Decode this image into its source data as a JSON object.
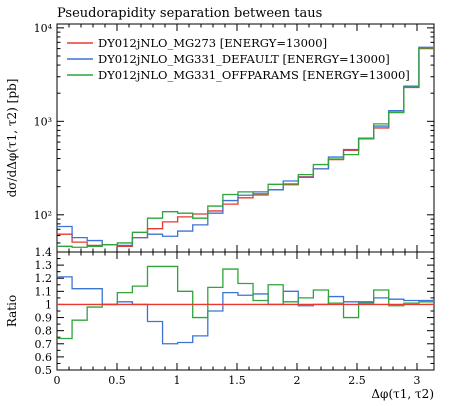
{
  "chart_data": [
    {
      "type": "line",
      "title": "Pseudorapidity separation between taus",
      "ylabel": "dσ/dΔφ(τ1, τ2) [pb]",
      "xlabel": "",
      "yscale": "log",
      "xlim": [
        0,
        3.1416
      ],
      "ylim": [
        40,
        11000
      ],
      "grid": false,
      "legend_position": "top-left",
      "x_ticks": [
        "0",
        "0.5",
        "1",
        "1.5",
        "2",
        "2.5",
        "3"
      ],
      "y_ticks": [
        "10²",
        "10³",
        "10⁴"
      ],
      "bin_edges": [
        0,
        0.1257,
        0.2513,
        0.377,
        0.5027,
        0.6283,
        0.754,
        0.8796,
        1.0053,
        1.131,
        1.2566,
        1.3823,
        1.508,
        1.6336,
        1.7593,
        1.885,
        2.0106,
        2.1363,
        2.262,
        2.3876,
        2.5133,
        2.639,
        2.7646,
        2.8903,
        3.016,
        3.1416
      ],
      "series": [
        {
          "name": "DY012jNLO_MG273 [ENERGY=13000]",
          "color": "#e8382f",
          "values": [
            62,
            51,
            47,
            48,
            46,
            57,
            71,
            84,
            95,
            102,
            110,
            130,
            152,
            163,
            185,
            210,
            255,
            310,
            390,
            490,
            650,
            850,
            1250,
            2300,
            6000
          ]
        },
        {
          "name": "DY012jNLO_MG331_DEFAULT [ENERGY=13000]",
          "color": "#3c74d6",
          "values": [
            75,
            57,
            53,
            48,
            47,
            57,
            62,
            59,
            67,
            78,
            104,
            142,
            162,
            176,
            185,
            230,
            252,
            310,
            415,
            500,
            660,
            890,
            1300,
            2380,
            6200
          ]
        },
        {
          "name": "DY012jNLO_MG331_OFFPARAMS [ENERGY=13000]",
          "color": "#2ea43a",
          "values": [
            46,
            45,
            46,
            48,
            50,
            65,
            92,
            108,
            104,
            92,
            124,
            165,
            176,
            168,
            212,
            214,
            269,
            345,
            395,
            440,
            655,
            940,
            1240,
            2320,
            6100
          ]
        }
      ]
    },
    {
      "type": "line",
      "title": "",
      "ylabel": "Ratio",
      "xlabel": "Δφ(τ1, τ2)",
      "xlim": [
        0,
        3.1416
      ],
      "ylim": [
        0.5,
        1.4
      ],
      "grid": false,
      "x_ticks": [
        "0",
        "0.5",
        "1",
        "1.5",
        "2",
        "2.5",
        "3"
      ],
      "y_ticks": [
        "0.5",
        "0.6",
        "0.7",
        "0.8",
        "0.9",
        "1",
        "1.1",
        "1.2",
        "1.3",
        "1.4"
      ],
      "bin_edges": [
        0,
        0.1257,
        0.2513,
        0.377,
        0.5027,
        0.6283,
        0.754,
        0.8796,
        1.0053,
        1.131,
        1.2566,
        1.3823,
        1.508,
        1.6336,
        1.7593,
        1.885,
        2.0106,
        2.1363,
        2.262,
        2.3876,
        2.5133,
        2.639,
        2.7646,
        2.8903,
        3.016,
        3.1416
      ],
      "series": [
        {
          "name": "DY012jNLO_MG273 [ENERGY=13000]",
          "color": "#e8382f",
          "values": [
            1,
            1,
            1,
            1,
            1,
            1,
            1,
            1,
            1,
            1,
            1,
            1,
            1,
            1,
            1,
            1,
            1,
            1,
            1,
            1,
            1,
            1,
            1,
            1,
            1
          ]
        },
        {
          "name": "DY012jNLO_MG331_DEFAULT [ENERGY=13000]",
          "color": "#3c74d6",
          "values": [
            1.21,
            1.12,
            1.12,
            1.0,
            1.02,
            1.0,
            0.87,
            0.7,
            0.71,
            0.76,
            0.95,
            1.09,
            1.07,
            1.08,
            1.0,
            1.1,
            0.99,
            1.0,
            1.06,
            1.02,
            1.02,
            1.05,
            1.04,
            1.03,
            1.03
          ]
        },
        {
          "name": "DY012jNLO_MG331_OFFPARAMS [ENERGY=13000]",
          "color": "#2ea43a",
          "values": [
            0.74,
            0.88,
            0.98,
            1.0,
            1.09,
            1.14,
            1.29,
            1.29,
            1.1,
            0.9,
            1.13,
            1.27,
            1.16,
            1.03,
            1.15,
            1.02,
            1.05,
            1.11,
            1.01,
            0.9,
            1.01,
            1.11,
            0.99,
            1.01,
            1.02
          ]
        }
      ]
    }
  ]
}
